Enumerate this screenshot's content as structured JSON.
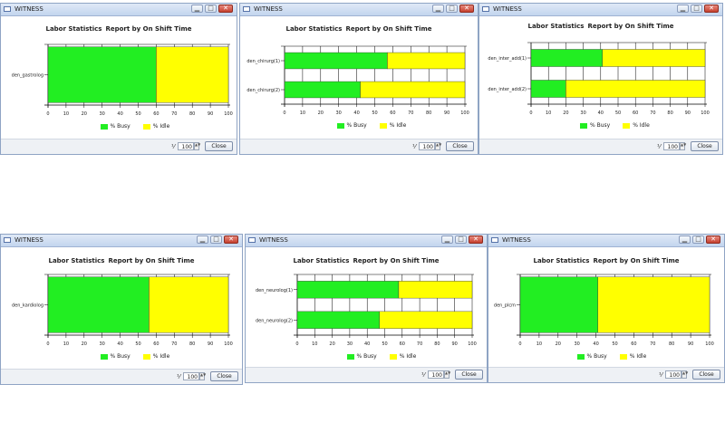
{
  "colors": {
    "busy": "#22ee22",
    "idle": "#ffff00"
  },
  "windows": [
    {
      "title": "WITNESS",
      "report_title": [
        "Labor Statistics",
        "Report by On Shift Time"
      ],
      "zoom_value": "100",
      "close_label": "Close",
      "legend": [
        "% Busy",
        "% Idle"
      ],
      "chart_data": {
        "type": "bar",
        "orientation": "horizontal",
        "stacked": true,
        "categories": [
          "den_gastrolog"
        ],
        "series": [
          {
            "name": "% Busy",
            "values": [
              60
            ]
          },
          {
            "name": "% Idle",
            "values": [
              40
            ]
          }
        ],
        "xlim": [
          0,
          100
        ],
        "ticks": [
          "0",
          "10",
          "20",
          "30",
          "40",
          "50",
          "60",
          "70",
          "80",
          "90",
          "100"
        ],
        "grid": true,
        "legend_position": "bottom"
      }
    },
    {
      "title": "WITNESS",
      "report_title": [
        "Labor Statistics",
        "Report by On Shift Time"
      ],
      "zoom_value": "100",
      "close_label": "Close",
      "legend": [
        "% Busy",
        "% Idle"
      ],
      "chart_data": {
        "type": "bar",
        "orientation": "horizontal",
        "stacked": true,
        "categories": [
          "den_chirurg(1)",
          "den_chirurg(2)"
        ],
        "series": [
          {
            "name": "% Busy",
            "values": [
              57,
              42
            ]
          },
          {
            "name": "% Idle",
            "values": [
              43,
              58
            ]
          }
        ],
        "xlim": [
          0,
          100
        ],
        "ticks": [
          "0",
          "10",
          "20",
          "30",
          "40",
          "50",
          "60",
          "70",
          "80",
          "90",
          "100"
        ],
        "grid": true,
        "legend_position": "bottom"
      }
    },
    {
      "title": "WITNESS",
      "report_title": [
        "Labor Statistics",
        "Report by On Shift Time"
      ],
      "zoom_value": "100",
      "close_label": "Close",
      "legend": [
        "% Busy",
        "% Idle"
      ],
      "chart_data": {
        "type": "bar",
        "orientation": "horizontal",
        "stacked": true,
        "categories": [
          "den_inter_add(1)",
          "den_inter_add(2)"
        ],
        "series": [
          {
            "name": "% Busy",
            "values": [
              41,
              20
            ]
          },
          {
            "name": "% Idle",
            "values": [
              59,
              80
            ]
          }
        ],
        "xlim": [
          0,
          100
        ],
        "ticks": [
          "0",
          "10",
          "20",
          "30",
          "40",
          "50",
          "60",
          "70",
          "80",
          "90",
          "100"
        ],
        "grid": true,
        "legend_position": "bottom"
      }
    },
    {
      "title": "WITNESS",
      "report_title": [
        "Labor Statistics",
        "Report by On Shift Time"
      ],
      "zoom_value": "100",
      "close_label": "Close",
      "legend": [
        "% Busy",
        "% Idle"
      ],
      "chart_data": {
        "type": "bar",
        "orientation": "horizontal",
        "stacked": true,
        "categories": [
          "den_kardiolog"
        ],
        "series": [
          {
            "name": "% Busy",
            "values": [
              56
            ]
          },
          {
            "name": "% Idle",
            "values": [
              44
            ]
          }
        ],
        "xlim": [
          0,
          100
        ],
        "ticks": [
          "0",
          "10",
          "20",
          "30",
          "40",
          "50",
          "60",
          "70",
          "80",
          "90",
          "100"
        ],
        "grid": true,
        "legend_position": "bottom"
      }
    },
    {
      "title": "WITNESS",
      "report_title": [
        "Labor Statistics",
        "Report by On Shift Time"
      ],
      "zoom_value": "100",
      "close_label": "Close",
      "legend": [
        "% Busy",
        "% Idle"
      ],
      "chart_data": {
        "type": "bar",
        "orientation": "horizontal",
        "stacked": true,
        "categories": [
          "den_neurolog(1)",
          "den_neurolog(2)"
        ],
        "series": [
          {
            "name": "% Busy",
            "values": [
              58,
              47
            ]
          },
          {
            "name": "% Idle",
            "values": [
              42,
              53
            ]
          }
        ],
        "xlim": [
          0,
          100
        ],
        "ticks": [
          "0",
          "10",
          "20",
          "30",
          "40",
          "50",
          "60",
          "70",
          "80",
          "90",
          "100"
        ],
        "grid": true,
        "legend_position": "bottom"
      }
    },
    {
      "title": "WITNESS",
      "report_title": [
        "Labor Statistics",
        "Report by On Shift Time"
      ],
      "zoom_value": "100",
      "close_label": "Close",
      "legend": [
        "% Busy",
        "% Idle"
      ],
      "chart_data": {
        "type": "bar",
        "orientation": "horizontal",
        "stacked": true,
        "categories": [
          "den_plcm"
        ],
        "series": [
          {
            "name": "% Busy",
            "values": [
              41
            ]
          },
          {
            "name": "% Idle",
            "values": [
              59
            ]
          }
        ],
        "xlim": [
          0,
          100
        ],
        "ticks": [
          "0",
          "10",
          "20",
          "30",
          "40",
          "50",
          "60",
          "70",
          "80",
          "90",
          "100"
        ],
        "grid": true,
        "legend_position": "bottom"
      }
    }
  ]
}
